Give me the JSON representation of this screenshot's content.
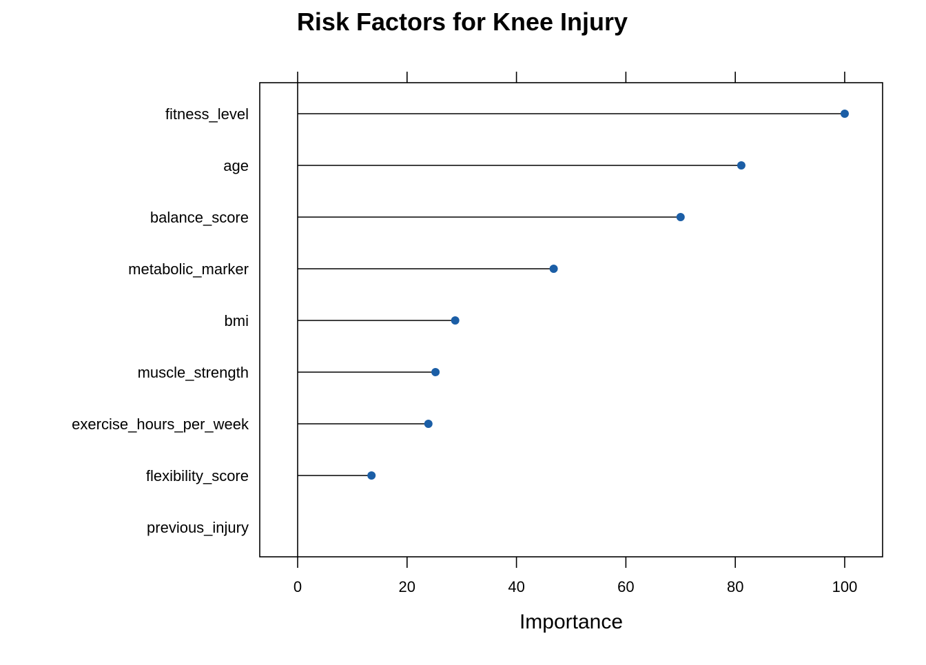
{
  "chart_data": {
    "type": "dot",
    "title": "Risk Factors for Knee Injury",
    "xlabel": "Importance",
    "ylabel": "",
    "categories": [
      "fitness_level",
      "age",
      "balance_score",
      "metabolic_marker",
      "bmi",
      "muscle_strength",
      "exercise_hours_per_week",
      "flexibility_score",
      "previous_injury"
    ],
    "values": [
      100,
      81.1,
      70.0,
      46.8,
      28.8,
      25.2,
      23.9,
      13.5,
      0
    ],
    "xlim": [
      -7,
      107
    ],
    "xticks": [
      0,
      20,
      40,
      60,
      80,
      100
    ],
    "xtick_labels": [
      "0",
      "20",
      "40",
      "60",
      "80",
      "100"
    ],
    "grid": false,
    "legend": "none",
    "point_color": "#1B5EA6",
    "line_color": "#000000"
  }
}
